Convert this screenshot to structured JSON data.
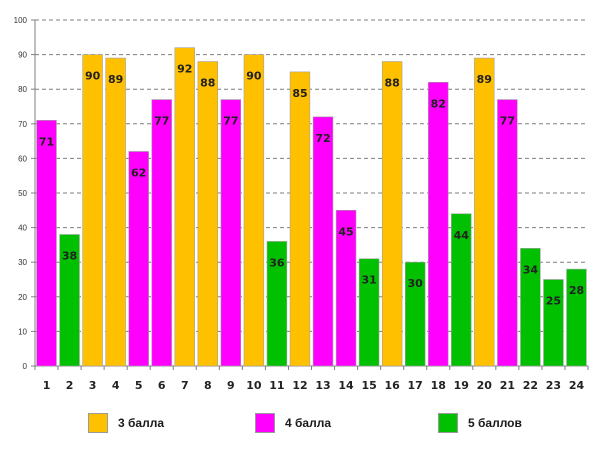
{
  "chart_data": {
    "type": "bar",
    "categories": [
      "1",
      "2",
      "3",
      "4",
      "5",
      "6",
      "7",
      "8",
      "9",
      "10",
      "11",
      "12",
      "13",
      "14",
      "15",
      "16",
      "17",
      "18",
      "19",
      "20",
      "21",
      "22",
      "23",
      "24"
    ],
    "values": [
      71,
      38,
      90,
      89,
      62,
      77,
      92,
      88,
      77,
      90,
      36,
      85,
      72,
      45,
      31,
      88,
      30,
      82,
      44,
      89,
      77,
      34,
      25,
      28
    ],
    "groups": [
      "4 балла",
      "5 баллов",
      "3 балла",
      "3 балла",
      "4 балла",
      "4 балла",
      "3 балла",
      "3 балла",
      "4 балла",
      "3 балла",
      "5 баллов",
      "3 балла",
      "4 балла",
      "4 балла",
      "5 баллов",
      "3 балла",
      "5 баллов",
      "4 балла",
      "5 баллов",
      "3 балла",
      "4 балла",
      "5 баллов",
      "5 баллов",
      "5 баллов"
    ],
    "ylim": [
      0,
      100
    ],
    "yticks": [
      0,
      10,
      20,
      30,
      40,
      50,
      60,
      70,
      80,
      90,
      100
    ],
    "grid": true,
    "title": "",
    "xlabel": "",
    "ylabel": "",
    "legend": [
      {
        "name": "3 балла",
        "color": "#FFC000"
      },
      {
        "name": "4 балла",
        "color": "#FF00FF"
      },
      {
        "name": "5 баллов",
        "color": "#00C000"
      }
    ]
  }
}
